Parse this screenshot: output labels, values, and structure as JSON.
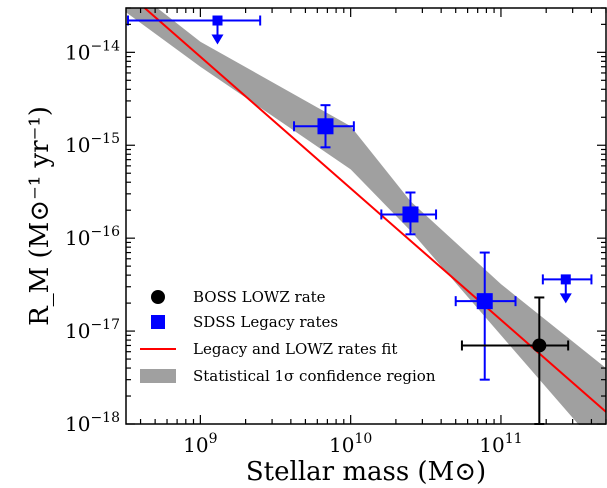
{
  "chart_data": {
    "type": "scatter",
    "x_scale": "log",
    "y_scale": "log",
    "xlim": [
      320000000.0,
      500000000000.0
    ],
    "ylim": [
      1e-18,
      3e-14
    ],
    "xlabel": "Stellar mass (M⊙)",
    "ylabel": "R_M (M⊙⁻¹ yr⁻¹)",
    "x_ticks": [
      {
        "value": 1000000000.0,
        "base": "10",
        "exp": "9"
      },
      {
        "value": 10000000000.0,
        "base": "10",
        "exp": "10"
      },
      {
        "value": 100000000000.0,
        "base": "10",
        "exp": "11"
      }
    ],
    "y_ticks": [
      {
        "value": 1e-18,
        "base": "10",
        "exp": "−18"
      },
      {
        "value": 1e-17,
        "base": "10",
        "exp": "−17"
      },
      {
        "value": 1e-16,
        "base": "10",
        "exp": "−16"
      },
      {
        "value": 1e-15,
        "base": "10",
        "exp": "−15"
      },
      {
        "value": 1e-14,
        "base": "10",
        "exp": "−14"
      }
    ],
    "series": [
      {
        "name": "SDSS Legacy rates",
        "color": "#0000ff",
        "marker": "square",
        "points": [
          {
            "x": 6800000000.0,
            "y": 1.6e-15,
            "xlo": 4200000000.0,
            "xhi": 10500000000.0,
            "ylo": 9.5e-16,
            "yhi": 2.7e-15
          },
          {
            "x": 25000000000.0,
            "y": 1.8e-16,
            "xlo": 16000000000.0,
            "xhi": 37000000000.0,
            "ylo": 1.1e-16,
            "yhi": 3.1e-16
          },
          {
            "x": 78000000000.0,
            "y": 2.1e-17,
            "xlo": 50000000000.0,
            "xhi": 125000000000.0,
            "ylo": 3e-18,
            "yhi": 7e-17
          }
        ],
        "upper_limits": [
          {
            "x": 1300000000.0,
            "y": 2.2e-14,
            "xlo": 330000000.0,
            "xhi": 2500000000.0
          },
          {
            "x": 270000000000.0,
            "y": 3.6e-17,
            "xlo": 190000000000.0,
            "xhi": 400000000000.0
          }
        ]
      },
      {
        "name": "BOSS LOWZ rate",
        "color": "#000000",
        "marker": "circle",
        "points": [
          {
            "x": 180000000000.0,
            "y": 7e-18,
            "xlo": 55000000000.0,
            "xhi": 280000000000.0,
            "ylo": 1e-18,
            "yhi": 2.3e-17
          }
        ]
      }
    ],
    "fit": {
      "name": "Legacy and LOWZ rates fit",
      "color": "#ff0000",
      "x": [
        320000000.0,
        500000000000.0
      ],
      "y": [
        4.5e-14,
        1.35e-18
      ]
    },
    "confidence_band": {
      "name": "Statistical 1σ confidence region",
      "color": "#a0a0a0",
      "x": [
        320000000.0,
        1000000000.0,
        10000000000.0,
        25000000000.0,
        100000000000.0,
        500000000000.0
      ],
      "ylow": [
        2.7e-14,
        7e-15,
        5.5e-16,
        1.2e-16,
        9e-18,
        4.5e-19
      ],
      "yhigh": [
        5.5e-14,
        1.3e-14,
        1.6e-15,
        2.5e-16,
        3.2e-17,
        4e-18
      ]
    },
    "legend": {
      "position": "lower-left",
      "entries": [
        {
          "label": "BOSS LOWZ rate",
          "kind": "circle",
          "color": "#000000"
        },
        {
          "label": "SDSS Legacy rates",
          "kind": "square",
          "color": "#0000ff"
        },
        {
          "label": "Legacy and LOWZ rates fit",
          "kind": "line",
          "color": "#ff0000"
        },
        {
          "label": "Statistical 1σ confidence region",
          "kind": "patch",
          "color": "#a0a0a0"
        }
      ]
    }
  }
}
